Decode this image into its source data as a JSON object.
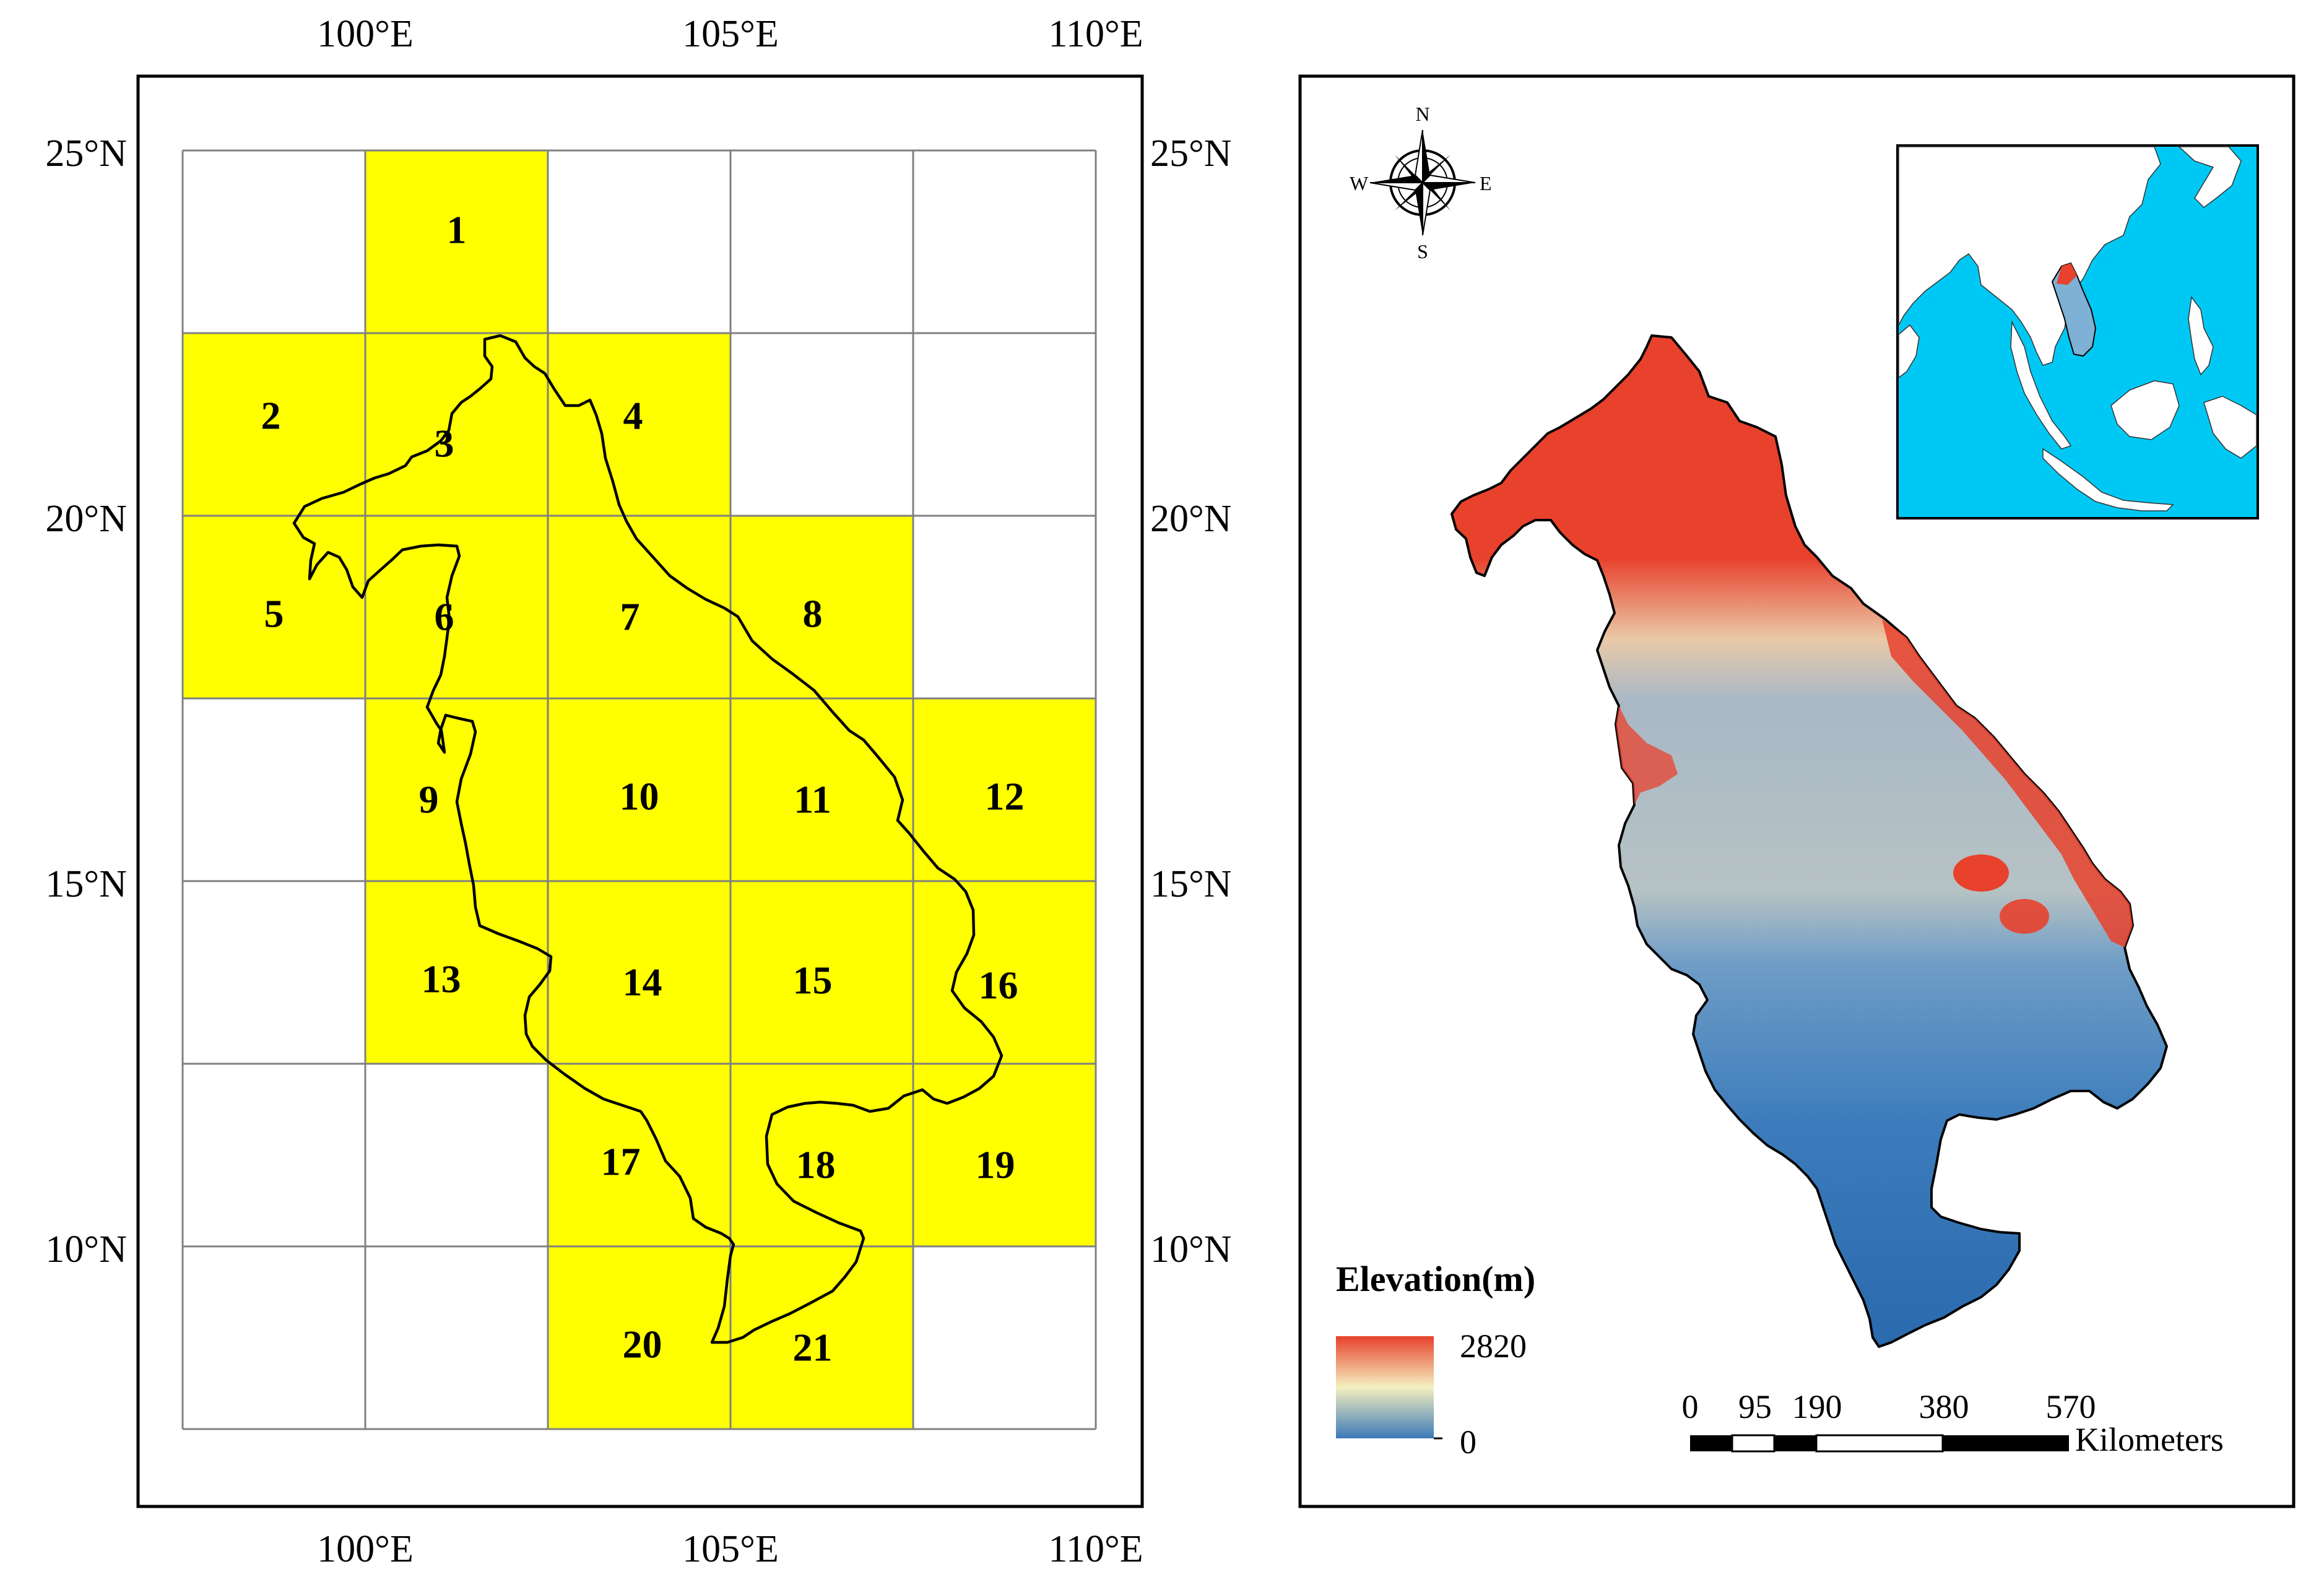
{
  "left_map": {
    "lon_labels": [
      "100°E",
      "105°E",
      "110°E"
    ],
    "lat_labels": [
      "25°N",
      "20°N",
      "15°N",
      "10°N"
    ],
    "grid": {
      "lon_range": [
        97.5,
        110
      ],
      "lat_range": [
        7.5,
        25
      ],
      "step_deg": 2.5,
      "cell_fill": "#ffff00",
      "cells": [
        {
          "id": "1",
          "row": 0,
          "col": 1
        },
        {
          "id": "2",
          "row": 1,
          "col": 0
        },
        {
          "id": "3",
          "row": 1,
          "col": 1
        },
        {
          "id": "4",
          "row": 1,
          "col": 2
        },
        {
          "id": "5",
          "row": 2,
          "col": 0
        },
        {
          "id": "6",
          "row": 2,
          "col": 1
        },
        {
          "id": "7",
          "row": 2,
          "col": 2
        },
        {
          "id": "8",
          "row": 2,
          "col": 3
        },
        {
          "id": "9",
          "row": 3,
          "col": 1
        },
        {
          "id": "10",
          "row": 3,
          "col": 2
        },
        {
          "id": "11",
          "row": 3,
          "col": 3
        },
        {
          "id": "12",
          "row": 3,
          "col": 4
        },
        {
          "id": "13",
          "row": 4,
          "col": 1
        },
        {
          "id": "14",
          "row": 4,
          "col": 2
        },
        {
          "id": "15",
          "row": 4,
          "col": 3
        },
        {
          "id": "16",
          "row": 4,
          "col": 4
        },
        {
          "id": "17",
          "row": 5,
          "col": 2
        },
        {
          "id": "18",
          "row": 5,
          "col": 3
        },
        {
          "id": "19",
          "row": 5,
          "col": 4
        },
        {
          "id": "20",
          "row": 6,
          "col": 2
        },
        {
          "id": "21",
          "row": 6,
          "col": 3
        }
      ]
    }
  },
  "right_map": {
    "compass": {
      "n": "N",
      "s": "S",
      "e": "E",
      "w": "W"
    },
    "legend": {
      "title": "Elevation(m)",
      "max_label": "2820",
      "min_label": "0",
      "color_high": "#e8412c",
      "color_mid": "#f4f0c0",
      "color_low": "#3d7ab8"
    },
    "scale_bar": {
      "ticks": [
        "0",
        "95",
        "190",
        "380",
        "570"
      ],
      "unit": "Kilometers"
    },
    "inset": {
      "ocean_color": "#00c8f4",
      "land_color": "#ffffff"
    }
  },
  "colors": {
    "elev_high": "#e8412c",
    "elev_mid": "#f0e9b8",
    "elev_low": "#2f70b4",
    "elev_grey": "#a9b8c6"
  }
}
